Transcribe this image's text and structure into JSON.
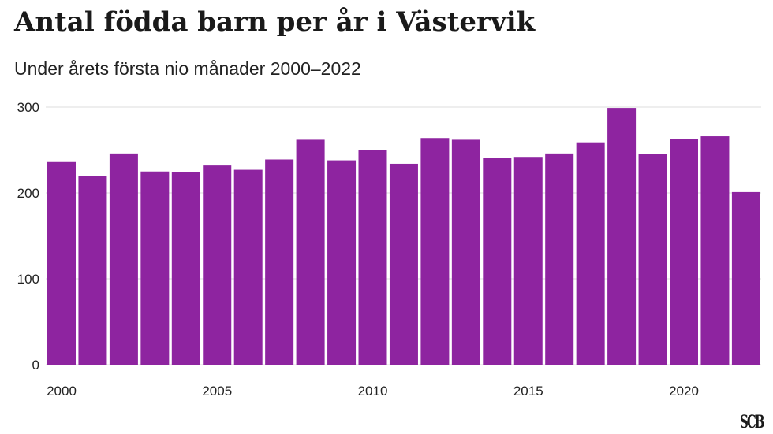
{
  "header": {
    "title": "Antal födda barn per år i Västervik",
    "subtitle": "Under årets första nio månader 2000–2022"
  },
  "logo": {
    "text": "SCB"
  },
  "colors": {
    "bar": "#8e24a0",
    "grid": "#dcdcdc"
  },
  "chart_data": {
    "type": "bar",
    "x": [
      2000,
      2001,
      2002,
      2003,
      2004,
      2005,
      2006,
      2007,
      2008,
      2009,
      2010,
      2011,
      2012,
      2013,
      2014,
      2015,
      2016,
      2017,
      2018,
      2019,
      2020,
      2021,
      2022
    ],
    "values": [
      236,
      220,
      246,
      225,
      224,
      232,
      227,
      239,
      262,
      238,
      250,
      234,
      264,
      262,
      241,
      242,
      246,
      259,
      299,
      245,
      263,
      266,
      201
    ],
    "ylim": [
      0,
      300
    ],
    "yticks": [
      "0",
      "100",
      "200",
      "300"
    ],
    "xticks": [
      "2000",
      "2005",
      "2010",
      "2015",
      "2020"
    ],
    "grid": true
  }
}
